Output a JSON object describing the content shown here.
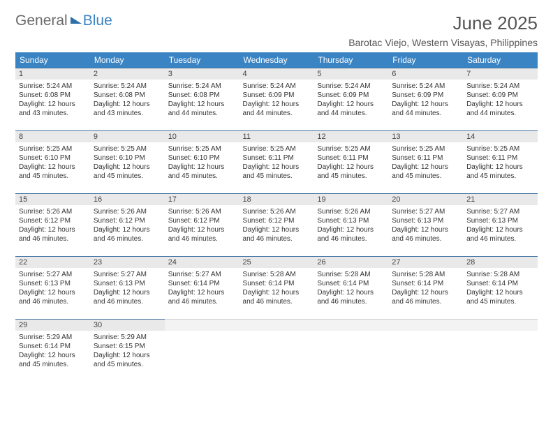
{
  "logo": {
    "word1": "General",
    "word2": "Blue"
  },
  "title": "June 2025",
  "location": "Barotac Viejo, Western Visayas, Philippines",
  "day_headers": [
    "Sunday",
    "Monday",
    "Tuesday",
    "Wednesday",
    "Thursday",
    "Friday",
    "Saturday"
  ],
  "header_bg": "#3b84c4",
  "daynum_bg": "#e9e9e9",
  "border_color": "#3b6fa0",
  "days": [
    {
      "n": "1",
      "sr": "5:24 AM",
      "ss": "6:08 PM",
      "dl": "12 hours and 43 minutes."
    },
    {
      "n": "2",
      "sr": "5:24 AM",
      "ss": "6:08 PM",
      "dl": "12 hours and 43 minutes."
    },
    {
      "n": "3",
      "sr": "5:24 AM",
      "ss": "6:08 PM",
      "dl": "12 hours and 44 minutes."
    },
    {
      "n": "4",
      "sr": "5:24 AM",
      "ss": "6:09 PM",
      "dl": "12 hours and 44 minutes."
    },
    {
      "n": "5",
      "sr": "5:24 AM",
      "ss": "6:09 PM",
      "dl": "12 hours and 44 minutes."
    },
    {
      "n": "6",
      "sr": "5:24 AM",
      "ss": "6:09 PM",
      "dl": "12 hours and 44 minutes."
    },
    {
      "n": "7",
      "sr": "5:24 AM",
      "ss": "6:09 PM",
      "dl": "12 hours and 44 minutes."
    },
    {
      "n": "8",
      "sr": "5:25 AM",
      "ss": "6:10 PM",
      "dl": "12 hours and 45 minutes."
    },
    {
      "n": "9",
      "sr": "5:25 AM",
      "ss": "6:10 PM",
      "dl": "12 hours and 45 minutes."
    },
    {
      "n": "10",
      "sr": "5:25 AM",
      "ss": "6:10 PM",
      "dl": "12 hours and 45 minutes."
    },
    {
      "n": "11",
      "sr": "5:25 AM",
      "ss": "6:11 PM",
      "dl": "12 hours and 45 minutes."
    },
    {
      "n": "12",
      "sr": "5:25 AM",
      "ss": "6:11 PM",
      "dl": "12 hours and 45 minutes."
    },
    {
      "n": "13",
      "sr": "5:25 AM",
      "ss": "6:11 PM",
      "dl": "12 hours and 45 minutes."
    },
    {
      "n": "14",
      "sr": "5:25 AM",
      "ss": "6:11 PM",
      "dl": "12 hours and 45 minutes."
    },
    {
      "n": "15",
      "sr": "5:26 AM",
      "ss": "6:12 PM",
      "dl": "12 hours and 46 minutes."
    },
    {
      "n": "16",
      "sr": "5:26 AM",
      "ss": "6:12 PM",
      "dl": "12 hours and 46 minutes."
    },
    {
      "n": "17",
      "sr": "5:26 AM",
      "ss": "6:12 PM",
      "dl": "12 hours and 46 minutes."
    },
    {
      "n": "18",
      "sr": "5:26 AM",
      "ss": "6:12 PM",
      "dl": "12 hours and 46 minutes."
    },
    {
      "n": "19",
      "sr": "5:26 AM",
      "ss": "6:13 PM",
      "dl": "12 hours and 46 minutes."
    },
    {
      "n": "20",
      "sr": "5:27 AM",
      "ss": "6:13 PM",
      "dl": "12 hours and 46 minutes."
    },
    {
      "n": "21",
      "sr": "5:27 AM",
      "ss": "6:13 PM",
      "dl": "12 hours and 46 minutes."
    },
    {
      "n": "22",
      "sr": "5:27 AM",
      "ss": "6:13 PM",
      "dl": "12 hours and 46 minutes."
    },
    {
      "n": "23",
      "sr": "5:27 AM",
      "ss": "6:13 PM",
      "dl": "12 hours and 46 minutes."
    },
    {
      "n": "24",
      "sr": "5:27 AM",
      "ss": "6:14 PM",
      "dl": "12 hours and 46 minutes."
    },
    {
      "n": "25",
      "sr": "5:28 AM",
      "ss": "6:14 PM",
      "dl": "12 hours and 46 minutes."
    },
    {
      "n": "26",
      "sr": "5:28 AM",
      "ss": "6:14 PM",
      "dl": "12 hours and 46 minutes."
    },
    {
      "n": "27",
      "sr": "5:28 AM",
      "ss": "6:14 PM",
      "dl": "12 hours and 46 minutes."
    },
    {
      "n": "28",
      "sr": "5:28 AM",
      "ss": "6:14 PM",
      "dl": "12 hours and 45 minutes."
    },
    {
      "n": "29",
      "sr": "5:29 AM",
      "ss": "6:14 PM",
      "dl": "12 hours and 45 minutes."
    },
    {
      "n": "30",
      "sr": "5:29 AM",
      "ss": "6:15 PM",
      "dl": "12 hours and 45 minutes."
    }
  ],
  "labels": {
    "sunrise": "Sunrise: ",
    "sunset": "Sunset: ",
    "daylight": "Daylight: "
  }
}
